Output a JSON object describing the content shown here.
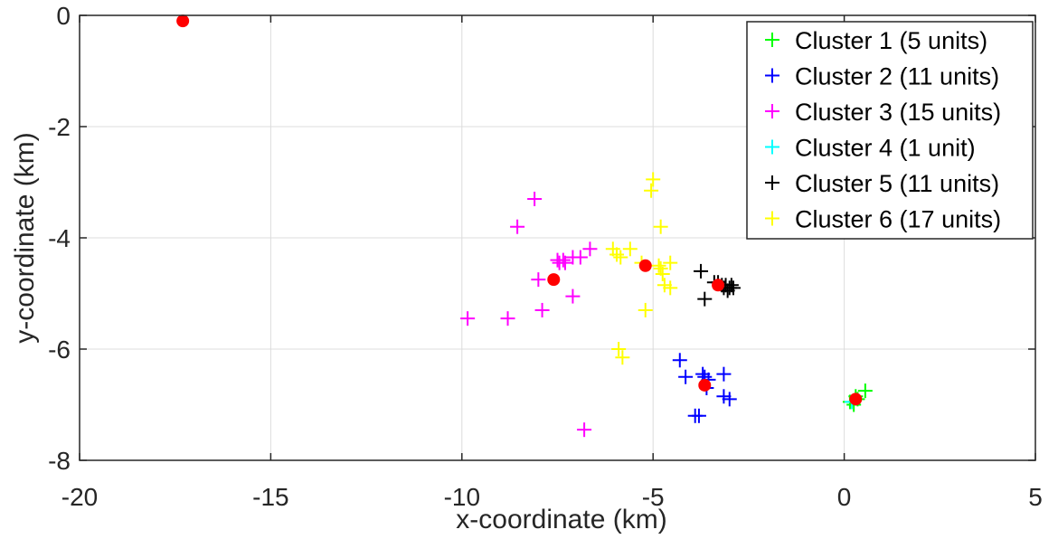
{
  "chart_data": {
    "type": "scatter",
    "title": "",
    "xlabel": "x-coordinate (km)",
    "ylabel": "y-coordinate (km)",
    "xlim": [
      -20,
      5
    ],
    "ylim": [
      -8,
      0
    ],
    "xticks": [
      -20,
      -15,
      -10,
      -5,
      0,
      5
    ],
    "yticks": [
      0,
      -2,
      -4,
      -6,
      -8
    ],
    "grid": true,
    "legend_position": "top-right",
    "series": [
      {
        "name": "Cluster 1 (5 units)",
        "color": "#00ff00",
        "marker": "plus",
        "points": [
          [
            0.55,
            -6.75
          ],
          [
            0.15,
            -6.95
          ],
          [
            0.25,
            -7.0
          ],
          [
            0.35,
            -6.9
          ],
          [
            0.3,
            -6.85
          ]
        ]
      },
      {
        "name": "Cluster 2 (11 units)",
        "color": "#0000ff",
        "marker": "plus",
        "points": [
          [
            -4.3,
            -6.2
          ],
          [
            -4.15,
            -6.5
          ],
          [
            -3.65,
            -6.5
          ],
          [
            -3.7,
            -6.45
          ],
          [
            -3.15,
            -6.45
          ],
          [
            -3.15,
            -6.85
          ],
          [
            -3.0,
            -6.9
          ],
          [
            -3.9,
            -7.2
          ],
          [
            -3.8,
            -7.2
          ],
          [
            -3.6,
            -6.7
          ],
          [
            -3.55,
            -6.55
          ]
        ]
      },
      {
        "name": "Cluster 3 (15 units)",
        "color": "#ff00ff",
        "marker": "plus",
        "points": [
          [
            -8.1,
            -3.3
          ],
          [
            -8.55,
            -3.8
          ],
          [
            -6.65,
            -4.2
          ],
          [
            -6.9,
            -4.35
          ],
          [
            -7.1,
            -4.35
          ],
          [
            -7.35,
            -4.4
          ],
          [
            -7.45,
            -4.45
          ],
          [
            -8.0,
            -4.75
          ],
          [
            -7.1,
            -5.05
          ],
          [
            -7.9,
            -5.3
          ],
          [
            -9.85,
            -5.45
          ],
          [
            -8.8,
            -5.45
          ],
          [
            -6.8,
            -7.45
          ],
          [
            -7.5,
            -4.4
          ],
          [
            -7.3,
            -4.45
          ]
        ]
      },
      {
        "name": "Cluster 4 (1 unit)",
        "color": "#00ffff",
        "marker": "plus",
        "points": [
          [
            0.2,
            -6.95
          ]
        ]
      },
      {
        "name": "Cluster 5 (11 units)",
        "color": "#000000",
        "marker": "plus",
        "points": [
          [
            -3.75,
            -4.6
          ],
          [
            -3.65,
            -5.1
          ],
          [
            -3.3,
            -4.8
          ],
          [
            -3.1,
            -4.85
          ],
          [
            -2.95,
            -4.85
          ],
          [
            -3.05,
            -4.95
          ],
          [
            -2.9,
            -4.9
          ],
          [
            -3.2,
            -4.85
          ],
          [
            -3.4,
            -4.8
          ],
          [
            -3.15,
            -4.9
          ],
          [
            -3.0,
            -4.9
          ]
        ]
      },
      {
        "name": "Cluster 6 (17 units)",
        "color": "#ffff00",
        "marker": "plus",
        "points": [
          [
            -5.0,
            -2.95
          ],
          [
            -5.05,
            -3.15
          ],
          [
            -4.8,
            -3.8
          ],
          [
            -6.05,
            -4.2
          ],
          [
            -5.6,
            -4.2
          ],
          [
            -5.95,
            -4.3
          ],
          [
            -5.85,
            -4.35
          ],
          [
            -4.55,
            -4.45
          ],
          [
            -4.8,
            -4.55
          ],
          [
            -4.75,
            -4.65
          ],
          [
            -4.7,
            -4.85
          ],
          [
            -4.55,
            -4.9
          ],
          [
            -5.2,
            -5.3
          ],
          [
            -5.9,
            -6.0
          ],
          [
            -5.8,
            -6.15
          ],
          [
            -5.3,
            -4.45
          ],
          [
            -4.85,
            -4.5
          ]
        ]
      }
    ],
    "centroids": {
      "color": "#ff0000",
      "marker": "dot",
      "points": [
        [
          -17.3,
          -0.1
        ],
        [
          -7.6,
          -4.75
        ],
        [
          -5.2,
          -4.5
        ],
        [
          -3.3,
          -4.85
        ],
        [
          -3.65,
          -6.65
        ],
        [
          0.3,
          -6.9
        ]
      ]
    }
  }
}
